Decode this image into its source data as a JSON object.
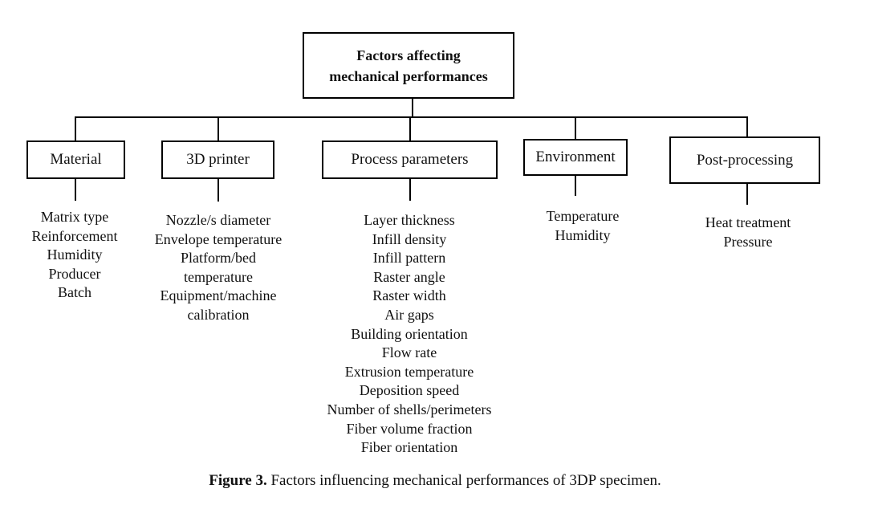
{
  "root": {
    "line1": "Factors affecting",
    "line2": "mechanical performances"
  },
  "categories": [
    {
      "label": "Material",
      "items": [
        "Matrix type",
        "Reinforcement",
        "Humidity",
        "Producer",
        "Batch"
      ]
    },
    {
      "label": "3D printer",
      "items": [
        "Nozzle/s diameter",
        "Envelope temperature",
        "Platform/bed",
        "temperature",
        "Equipment/machine",
        "calibration"
      ]
    },
    {
      "label": "Process parameters",
      "items": [
        "Layer thickness",
        "Infill density",
        "Infill pattern",
        "Raster angle",
        "Raster width",
        "Air gaps",
        "Building orientation",
        "Flow rate",
        "Extrusion temperature",
        "Deposition speed",
        "Number of shells/perimeters",
        "Fiber volume fraction",
        "Fiber orientation"
      ]
    },
    {
      "label": "Environment",
      "items": [
        "Temperature",
        "Humidity"
      ]
    },
    {
      "label": "Post-processing",
      "items": [
        "Heat treatment",
        "Pressure"
      ]
    }
  ],
  "caption": {
    "label": "Figure 3.",
    "text": " Factors influencing mechanical performances of 3DP specimen."
  }
}
